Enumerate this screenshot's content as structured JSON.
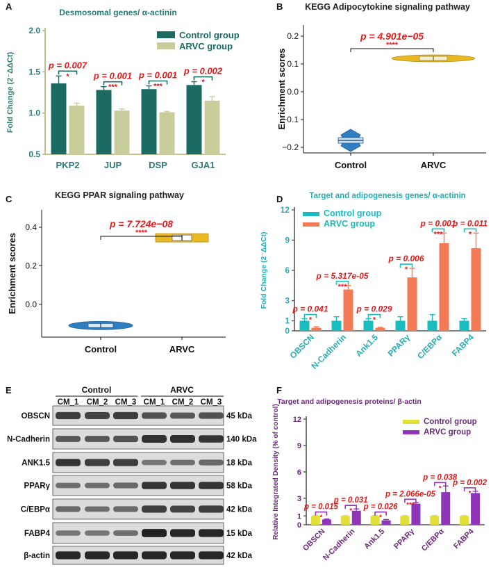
{
  "colors": {
    "teal": "#1b6b62",
    "sage": "#c9cc9b",
    "cyan": "#1bbcbf",
    "salmon": "#f27a54",
    "yellow": "#e3df3a",
    "purple": "#8e35b8",
    "red": "#e21b1b",
    "blue": "#2f7ec2",
    "gold": "#e9b923",
    "darkpurple": "#6a2a7a",
    "axisOlive": "#b0b070"
  },
  "chart_data": [
    {
      "id": "A",
      "panel_label": "A",
      "type": "bar",
      "title": "Desmosomal genes/ α-actinin",
      "ylabel": "Fold Change (2⁻ΔΔCt)",
      "ylim": [
        0.5,
        2.0
      ],
      "yticks": [
        "0.5",
        "1.0",
        "1.5",
        "2.0"
      ],
      "categories": [
        "PKP2",
        "JUP",
        "DSP",
        "GJA1"
      ],
      "series": [
        {
          "name": "Control group",
          "values": [
            1.36,
            1.28,
            1.29,
            1.34
          ],
          "errors": [
            0.09,
            0.04,
            0.04,
            0.04
          ]
        },
        {
          "name": "ARVC group",
          "values": [
            1.09,
            1.03,
            1.01,
            1.15
          ],
          "errors": [
            0.03,
            0.02,
            0.01,
            0.05
          ]
        }
      ],
      "pvalues": [
        "p = 0.007",
        "p = 0.001",
        "p = 0.001",
        "p = 0.002"
      ],
      "stars": [
        "*",
        "***",
        "***",
        "*"
      ]
    },
    {
      "id": "B",
      "panel_label": "B",
      "type": "violin",
      "title": "KEGG Adipocytokine signaling pathway",
      "ylabel": "Enrichment scores",
      "ylim": [
        -0.22,
        0.24
      ],
      "yticks": [
        "0.2",
        "0.1",
        "0.0",
        "−0.1",
        "−0.2"
      ],
      "ytick_values": [
        0.2,
        0.1,
        0.0,
        -0.1,
        -0.2
      ],
      "categories": [
        "Control",
        "ARVC"
      ],
      "medians": [
        -0.175,
        0.12
      ],
      "pvalue": "p = 4.901e−05",
      "stars": "****"
    },
    {
      "id": "C",
      "panel_label": "C",
      "type": "violin",
      "title": "KEGG PPAR signaling pathway",
      "ylabel": "Enrichment scores",
      "ylim": [
        -0.17,
        0.49
      ],
      "yticks": [
        "0.4",
        "0.2",
        "0.0"
      ],
      "ytick_values": [
        0.4,
        0.2,
        0.0
      ],
      "categories": [
        "Control",
        "ARVC"
      ],
      "medians": [
        -0.11,
        0.345
      ],
      "pvalue": "p = 7.724e−08",
      "stars": "****"
    },
    {
      "id": "D",
      "panel_label": "D",
      "type": "bar",
      "title": "Target and adipogenesis genes/  α-actinin",
      "ylabel": "Fold Change (2⁻ΔΔCt)",
      "ylim": [
        0,
        12
      ],
      "yticks": [
        "0",
        "1",
        "3",
        "6",
        "9",
        "12"
      ],
      "ytick_values": [
        0,
        1,
        3,
        6,
        9,
        12
      ],
      "categories": [
        "OBSCN",
        "N-Cadherin",
        "Ank1.5",
        "PPARγ",
        "C/EBPα",
        "FABP4"
      ],
      "series": [
        {
          "name": "Control group",
          "values": [
            1.0,
            1.0,
            1.0,
            1.0,
            1.0,
            1.0
          ],
          "errors": [
            0.2,
            0.4,
            0.2,
            0.4,
            0.6,
            0.2
          ]
        },
        {
          "name": "ARVC group",
          "values": [
            0.3,
            4.1,
            0.3,
            5.3,
            8.7,
            8.2
          ],
          "errors": [
            0.1,
            0.4,
            0.05,
            0.9,
            1.0,
            1.5
          ]
        }
      ],
      "pvalues": [
        "p = 0.041",
        "p = 5.317e-05",
        "p = 0.029",
        "p = 0.006",
        "p = 0.001",
        "p = 0.011"
      ],
      "stars": [
        "*",
        "***",
        "*",
        "*",
        "***",
        "*"
      ]
    },
    {
      "id": "F",
      "panel_label": "F",
      "type": "bar",
      "title": "Target and adipogenesis proteins/  β-actin",
      "ylabel": "Relative Integrated Density (% of control)",
      "ylim": [
        0,
        12
      ],
      "yticks": [
        "0",
        "1",
        "3",
        "6",
        "9",
        "12"
      ],
      "ytick_values": [
        0,
        1,
        3,
        6,
        9,
        12
      ],
      "categories": [
        "OBSCN",
        "N-Cadherin",
        "Ank1.5",
        "PPARγ",
        "C/EBPα",
        "FABP4"
      ],
      "series": [
        {
          "name": "Control group",
          "values": [
            1.0,
            1.0,
            1.0,
            1.0,
            1.0,
            1.0
          ],
          "errors": [
            0.05,
            0.05,
            0.05,
            0.05,
            0.05,
            0.05
          ]
        },
        {
          "name": "ARVC group",
          "values": [
            0.6,
            1.6,
            0.5,
            2.4,
            3.7,
            3.6
          ],
          "errors": [
            0.05,
            0.2,
            0.1,
            0.1,
            0.7,
            0.2
          ]
        }
      ],
      "pvalues": [
        "p = 0.015",
        "p = 0.031",
        "p = 0.026",
        "p = 2.066e-05",
        "p = 0.038",
        "p = 0.002"
      ],
      "stars": [
        "*",
        "*",
        "*",
        "***",
        "*",
        "*"
      ]
    }
  ],
  "blot": {
    "panel_label": "E",
    "groups": [
      "Control",
      "ARVC"
    ],
    "lanes": [
      "CM_1",
      "CM_2",
      "CM_3",
      "CM_1",
      "CM_2",
      "CM_3"
    ],
    "rows": [
      {
        "protein": "OBSCN",
        "size": "45 kDa",
        "intensities": [
          0.75,
          0.7,
          0.75,
          0.6,
          0.55,
          0.6
        ]
      },
      {
        "protein": "N-Cadherin",
        "size": "140 kDa",
        "intensities": [
          0.55,
          0.55,
          0.6,
          0.85,
          0.85,
          0.8
        ]
      },
      {
        "protein": "ANK1.5",
        "size": "18 kDa",
        "intensities": [
          0.8,
          0.75,
          0.75,
          0.35,
          0.4,
          0.45
        ]
      },
      {
        "protein": "PPARγ",
        "size": "58 kDa",
        "intensities": [
          0.4,
          0.4,
          0.45,
          0.8,
          0.8,
          0.8
        ]
      },
      {
        "protein": "C/EBPα",
        "size": "42 kDa",
        "intensities": [
          0.45,
          0.4,
          0.45,
          0.75,
          0.7,
          0.75
        ]
      },
      {
        "protein": "FABP4",
        "size": "15 kDa",
        "intensities": [
          0.35,
          0.35,
          0.4,
          0.95,
          0.9,
          0.9
        ]
      },
      {
        "protein": "β-actin",
        "size": "42 kDa",
        "intensities": [
          0.9,
          0.9,
          0.9,
          0.9,
          0.9,
          0.9
        ]
      }
    ]
  }
}
